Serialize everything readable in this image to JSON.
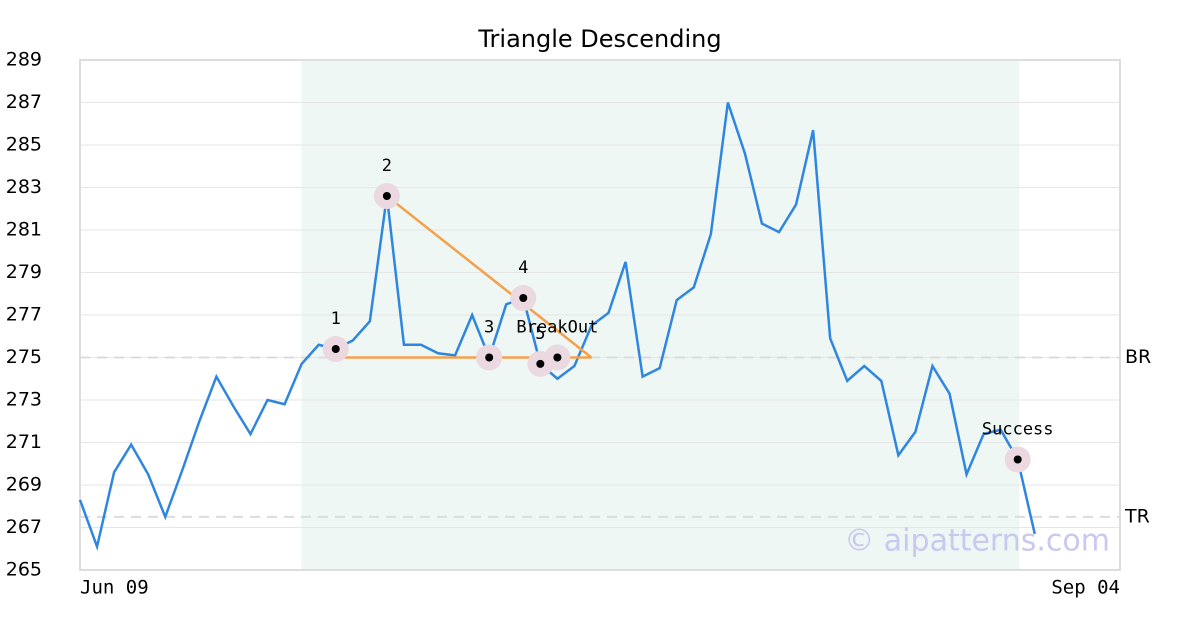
{
  "chart_data": {
    "type": "line",
    "title": "Triangle Descending",
    "values": [
      268.3,
      266.1,
      269.6,
      270.9,
      269.5,
      267.5,
      269.7,
      272.0,
      274.1,
      272.7,
      271.4,
      273.0,
      272.8,
      274.7,
      275.6,
      275.4,
      275.8,
      276.7,
      282.6,
      275.6,
      275.6,
      275.2,
      275.1,
      277.0,
      275.0,
      277.5,
      277.8,
      274.7,
      274.0,
      274.6,
      276.5,
      277.1,
      279.5,
      274.1,
      274.5,
      277.7,
      278.3,
      280.8,
      287.0,
      284.6,
      281.3,
      280.9,
      282.2,
      285.7,
      275.9,
      273.9,
      274.6,
      273.9,
      270.4,
      271.5,
      274.6,
      273.3,
      269.5,
      271.4,
      271.6,
      270.2,
      266.7
    ],
    "color": "#2f86e0",
    "xlim": [
      0,
      61
    ],
    "xticks": [
      {
        "value": 0,
        "label": "Jun 09"
      },
      {
        "value": 61,
        "label": "Sep 04"
      }
    ],
    "ylim": [
      265,
      289
    ],
    "yticks": [
      265,
      267,
      269,
      271,
      273,
      275,
      277,
      279,
      281,
      283,
      285,
      287,
      289
    ],
    "grid": true,
    "highlight_range": [
      13,
      55.1
    ],
    "levels": [
      {
        "label": "BR",
        "value": 275
      },
      {
        "label": "TR",
        "value": 267.5
      }
    ],
    "pattern_points": [
      {
        "label": "1",
        "x": 15,
        "y": 275.4
      },
      {
        "label": "2",
        "x": 18,
        "y": 282.6
      },
      {
        "label": "3",
        "x": 24,
        "y": 275.0
      },
      {
        "label": "4",
        "x": 26,
        "y": 277.8
      },
      {
        "label": "5",
        "x": 27,
        "y": 274.7
      },
      {
        "label": "BreakOut",
        "x": 28,
        "y": 275.0
      },
      {
        "label": "Success",
        "x": 55,
        "y": 270.2
      }
    ],
    "pattern_lines": [
      [
        [
          15,
          275
        ],
        [
          30,
          275
        ]
      ],
      [
        [
          18,
          282.6
        ],
        [
          30,
          275
        ]
      ]
    ],
    "pattern_color": "#f5a04a",
    "watermark": "© aipatterns.com"
  }
}
